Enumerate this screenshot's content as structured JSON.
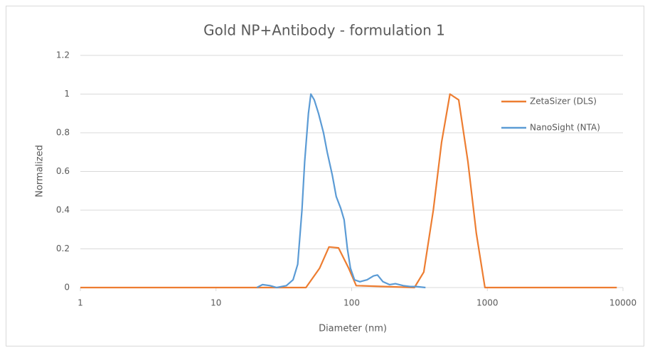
{
  "chart_data": {
    "type": "line",
    "title": "Gold NP+Antibody - formulation 1",
    "x_label": "Diameter (nm)",
    "y_label": "Normalized",
    "xscale": "log",
    "xlim": [
      1,
      10000
    ],
    "xticks": [
      1,
      10,
      100,
      1000,
      10000
    ],
    "ylim": [
      0,
      1.2
    ],
    "yticks": [
      0,
      0.2,
      0.4,
      0.6,
      0.8,
      1,
      1.2
    ],
    "grid": true,
    "legend": "right",
    "series": [
      {
        "name": "ZetaSizer (DLS)",
        "color": "#ed7d31",
        "x": [
          1,
          46,
          58,
          68,
          80,
          95,
          108,
          290,
          340,
          400,
          460,
          530,
          615,
          720,
          830,
          960,
          9000
        ],
        "values": [
          0,
          0,
          0.1,
          0.21,
          0.205,
          0.1,
          0.01,
          0,
          0.08,
          0.4,
          0.75,
          1,
          0.97,
          0.65,
          0.28,
          0,
          0
        ]
      },
      {
        "name": "NanoSight (NTA)",
        "color": "#5b9bd5",
        "x": [
          20,
          22,
          25,
          28,
          33,
          37,
          40,
          43,
          45,
          48,
          50,
          53,
          57,
          62,
          66,
          72,
          77,
          83,
          88,
          93,
          98,
          105,
          115,
          130,
          145,
          155,
          170,
          190,
          210,
          240,
          270,
          300,
          350
        ],
        "values": [
          0,
          0.015,
          0.01,
          0,
          0.01,
          0.04,
          0.12,
          0.4,
          0.65,
          0.9,
          1,
          0.97,
          0.9,
          0.8,
          0.7,
          0.58,
          0.47,
          0.41,
          0.35,
          0.2,
          0.1,
          0.04,
          0.03,
          0.04,
          0.06,
          0.065,
          0.03,
          0.015,
          0.02,
          0.01,
          0.005,
          0.005,
          0
        ]
      }
    ]
  }
}
